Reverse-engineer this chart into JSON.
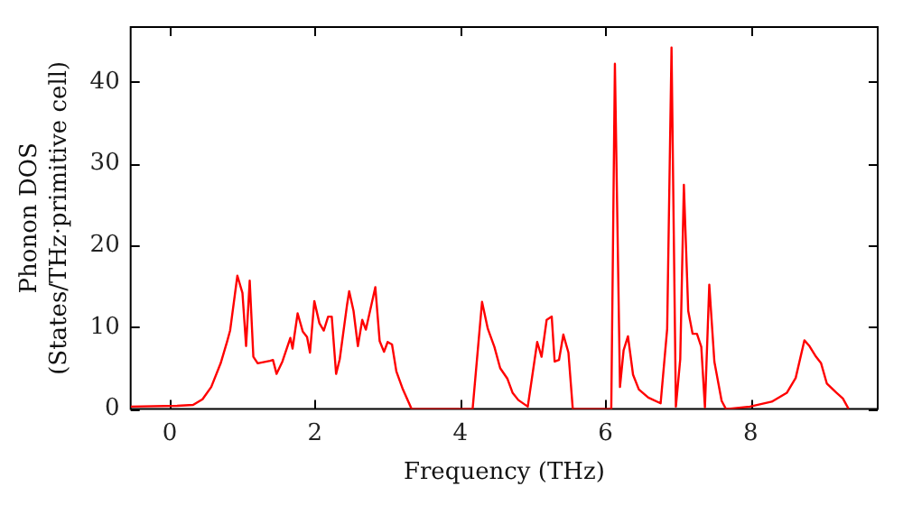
{
  "chart_data": {
    "type": "line",
    "xlabel": "Frequency (THz)",
    "ylabel": "Phonon DOS\n(States/THz·primitive cell)",
    "xlim": [
      -0.54,
      9.75
    ],
    "ylim": [
      0,
      46.7
    ],
    "xticks": [
      0,
      2,
      4,
      6,
      8
    ],
    "yticks": [
      0,
      10,
      20,
      30,
      40
    ],
    "grid": false,
    "legend": false,
    "marker": "none",
    "line_style": "solid",
    "series": [
      {
        "color": "#ff0000",
        "x": [
          -0.54,
          0.1,
          0.32,
          0.45,
          0.57,
          0.7,
          0.79,
          0.83,
          0.93,
          1.0,
          1.05,
          1.1,
          1.15,
          1.21,
          1.38,
          1.42,
          1.47,
          1.55,
          1.66,
          1.69,
          1.76,
          1.83,
          1.89,
          1.93,
          1.99,
          2.06,
          2.12,
          2.18,
          2.23,
          2.29,
          2.34,
          2.44,
          2.47,
          2.53,
          2.59,
          2.65,
          2.7,
          2.83,
          2.89,
          2.95,
          3.0,
          3.06,
          3.12,
          3.21,
          3.33,
          4.17,
          4.3,
          4.38,
          4.47,
          4.55,
          4.65,
          4.72,
          4.8,
          4.93,
          5.06,
          5.12,
          5.19,
          5.26,
          5.3,
          5.36,
          5.42,
          5.49,
          5.55,
          6.08,
          6.13,
          6.2,
          6.25,
          6.31,
          6.38,
          6.46,
          6.59,
          6.76,
          6.85,
          6.91,
          6.97,
          7.03,
          7.08,
          7.14,
          7.2,
          7.26,
          7.32,
          7.37,
          7.43,
          7.5,
          7.6,
          7.66,
          7.99,
          8.29,
          8.5,
          8.62,
          8.74,
          8.81,
          8.9,
          8.97,
          9.05,
          9.18,
          9.27,
          9.35
        ],
        "values": [
          0.3,
          0.4,
          0.5,
          1.2,
          2.7,
          5.6,
          8.3,
          9.6,
          16.3,
          14.2,
          7.7,
          15.7,
          6.4,
          5.6,
          5.9,
          6.0,
          4.3,
          5.8,
          8.7,
          7.4,
          11.7,
          9.5,
          8.8,
          6.9,
          13.2,
          10.5,
          9.6,
          11.3,
          11.3,
          4.3,
          6.1,
          12.7,
          14.4,
          12.0,
          7.7,
          10.9,
          9.7,
          14.9,
          8.3,
          7.0,
          8.2,
          7.9,
          4.6,
          2.4,
          0,
          0,
          13.1,
          9.8,
          7.6,
          5.0,
          3.7,
          2.0,
          1.1,
          0.3,
          8.2,
          6.4,
          10.9,
          11.3,
          5.8,
          6.0,
          9.1,
          6.9,
          0,
          0,
          42.2,
          2.7,
          7.2,
          8.9,
          4.2,
          2.4,
          1.4,
          0.7,
          9.8,
          44.2,
          0.3,
          6.1,
          27.4,
          12.0,
          9.2,
          9.2,
          7.6,
          0.2,
          15.2,
          5.8,
          1.0,
          0,
          0.3,
          0.9,
          2.0,
          3.8,
          8.4,
          7.7,
          6.4,
          5.6,
          3.1,
          2.0,
          1.3,
          0
        ]
      }
    ]
  }
}
